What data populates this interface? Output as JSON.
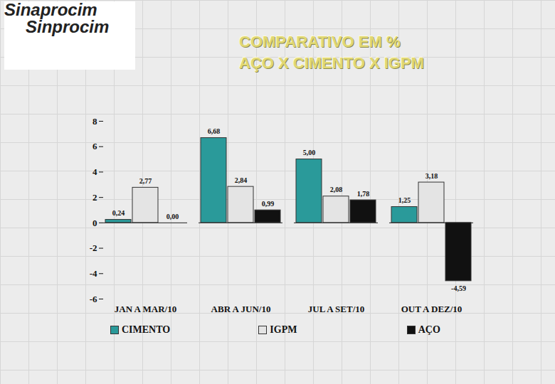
{
  "logo": [
    "Sinaprocim",
    "Sinprocim"
  ],
  "chart_data": {
    "type": "bar",
    "title": [
      "COMPARATIVO EM %",
      "AÇO X CIMENTO X IGPM"
    ],
    "categories": [
      "JAN A MAR/10",
      "ABR A JUN/10",
      "JUL A SET/10",
      "OUT A DEZ/10"
    ],
    "series": [
      {
        "name": "CIMENTO",
        "color": "#2a9a9a",
        "values": [
          0.24,
          6.68,
          5.0,
          1.25
        ],
        "value_labels": [
          "0,24",
          "6,68",
          "5,00",
          "1,25"
        ]
      },
      {
        "name": "IGPM",
        "color": "#e4e4e4",
        "values": [
          2.77,
          2.84,
          2.08,
          3.18
        ],
        "value_labels": [
          "2,77",
          "2,84",
          "2,08",
          "3,18"
        ]
      },
      {
        "name": "AÇO",
        "color": "#111111",
        "values": [
          0.0,
          0.99,
          1.78,
          -4.59
        ],
        "value_labels": [
          "0,00",
          "0,99",
          "1,78",
          "-4,59"
        ]
      }
    ],
    "ylim": [
      -6,
      8
    ],
    "yticks": [
      -6,
      -4,
      -2,
      0,
      2,
      4,
      6,
      8
    ],
    "grid": false,
    "legend": "bottom",
    "data_labels": true
  }
}
